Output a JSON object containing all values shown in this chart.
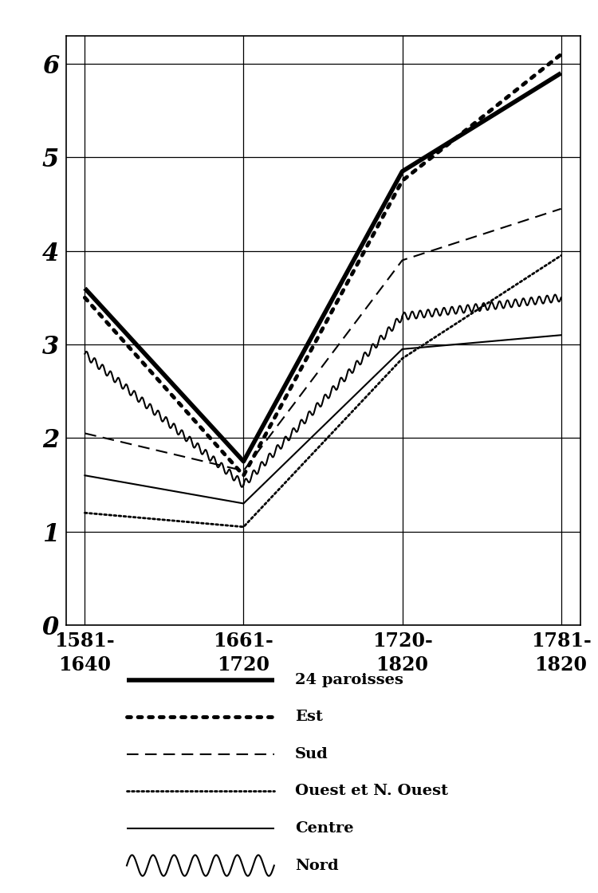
{
  "x_positions": [
    0,
    1,
    2,
    3
  ],
  "x_labels": [
    "1581-\n1640",
    "1661-\n1720",
    "1720-\n1820",
    "1781-\n1820"
  ],
  "series_order": [
    "24 paroisses",
    "Est",
    "Sud",
    "Ouest et N. Ouest",
    "Centre",
    "Nord"
  ],
  "series": {
    "24 paroisses": {
      "values": [
        3.6,
        1.75,
        4.85,
        5.9
      ],
      "style": "solid_thick",
      "linewidth": 4.0,
      "color": "#000000",
      "zorder": 5
    },
    "Est": {
      "values": [
        3.5,
        1.6,
        4.75,
        6.1
      ],
      "style": "dots_large",
      "linewidth": 3.5,
      "color": "#000000",
      "zorder": 4
    },
    "Sud": {
      "values": [
        2.05,
        1.65,
        3.9,
        4.45
      ],
      "style": "dashed",
      "linewidth": 1.5,
      "color": "#000000",
      "zorder": 3
    },
    "Ouest et N. Ouest": {
      "values": [
        1.2,
        1.05,
        2.85,
        3.95
      ],
      "style": "dots_small",
      "linewidth": 2.0,
      "color": "#000000",
      "zorder": 3
    },
    "Centre": {
      "values": [
        1.6,
        1.3,
        2.95,
        3.1
      ],
      "style": "solid_thin",
      "linewidth": 1.5,
      "color": "#000000",
      "zorder": 2
    },
    "Nord": {
      "values": [
        2.9,
        1.5,
        3.3,
        3.5
      ],
      "style": "wavy",
      "linewidth": 1.5,
      "color": "#000000",
      "zorder": 2
    }
  },
  "ylim": [
    0,
    6.3
  ],
  "yticks": [
    0,
    1,
    2,
    3,
    4,
    5,
    6
  ],
  "ytick_labels": [
    "0",
    "1",
    "2",
    "3",
    "4",
    "5",
    "6"
  ],
  "background_color": "#ffffff",
  "legend_items": [
    {
      "label": "24 paroisses",
      "style": "solid_thick",
      "linewidth": 4.0
    },
    {
      "label": "Est",
      "style": "dots_large",
      "linewidth": 3.5
    },
    {
      "label": "Sud",
      "style": "dashed",
      "linewidth": 1.5
    },
    {
      "label": "Ouest et N. Ouest",
      "style": "dots_small",
      "linewidth": 2.0
    },
    {
      "label": "Centre",
      "style": "solid_thin",
      "linewidth": 1.5
    },
    {
      "label": "Nord",
      "style": "wavy",
      "linewidth": 1.5
    }
  ]
}
